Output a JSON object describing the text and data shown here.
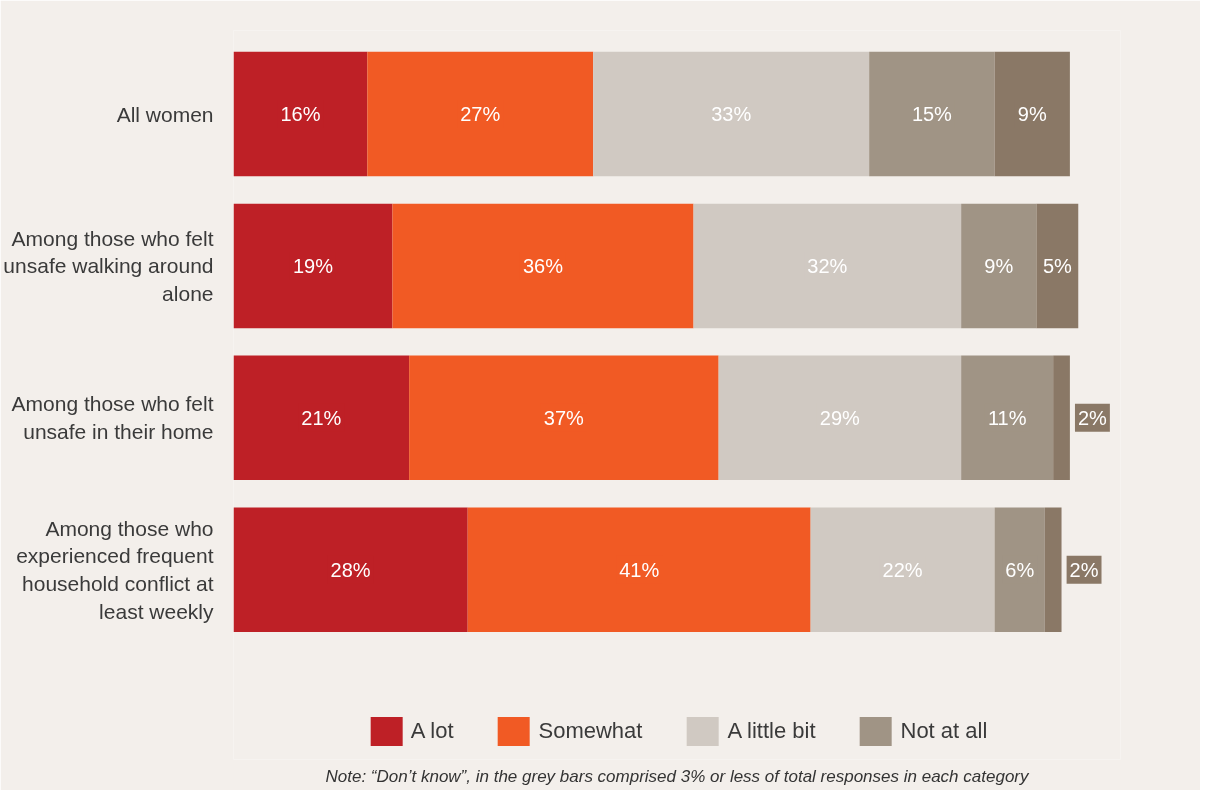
{
  "chart_data": {
    "type": "bar",
    "orientation": "horizontal",
    "stacked": true,
    "legend": "bottom",
    "categories": [
      "All women",
      "Among those who felt unsafe walking around alone",
      "Among those who felt unsafe in their home",
      "Among those who experienced frequent household conflict at least weekly"
    ],
    "series": [
      {
        "name": "A lot",
        "color": "#be2026",
        "values": [
          16,
          19,
          21,
          28
        ],
        "value_labels": [
          "16%",
          "19%",
          "21%",
          "28%"
        ]
      },
      {
        "name": "Somewhat",
        "color": "#f15a24",
        "values": [
          27,
          36,
          37,
          41
        ],
        "value_labels": [
          "27%",
          "36%",
          "37%",
          "41%"
        ]
      },
      {
        "name": "A little bit",
        "color": "#d0c9c2",
        "values": [
          33,
          32,
          29,
          22
        ],
        "value_labels": [
          "33%",
          "32%",
          "29%",
          "22%"
        ]
      },
      {
        "name": "Not at all",
        "color": "#a09485",
        "values": [
          15,
          9,
          11,
          6
        ],
        "value_labels": [
          "15%",
          "9%",
          "11%",
          "6%"
        ]
      },
      {
        "color": "#8a7866",
        "values": [
          9,
          5,
          2,
          2
        ],
        "value_labels": [
          "9%",
          "5%",
          "2%",
          "2%"
        ]
      }
    ],
    "annotations": [
      "Note: “Don’t know”, in the grey bars comprised 3% or less of total responses in each category"
    ]
  }
}
